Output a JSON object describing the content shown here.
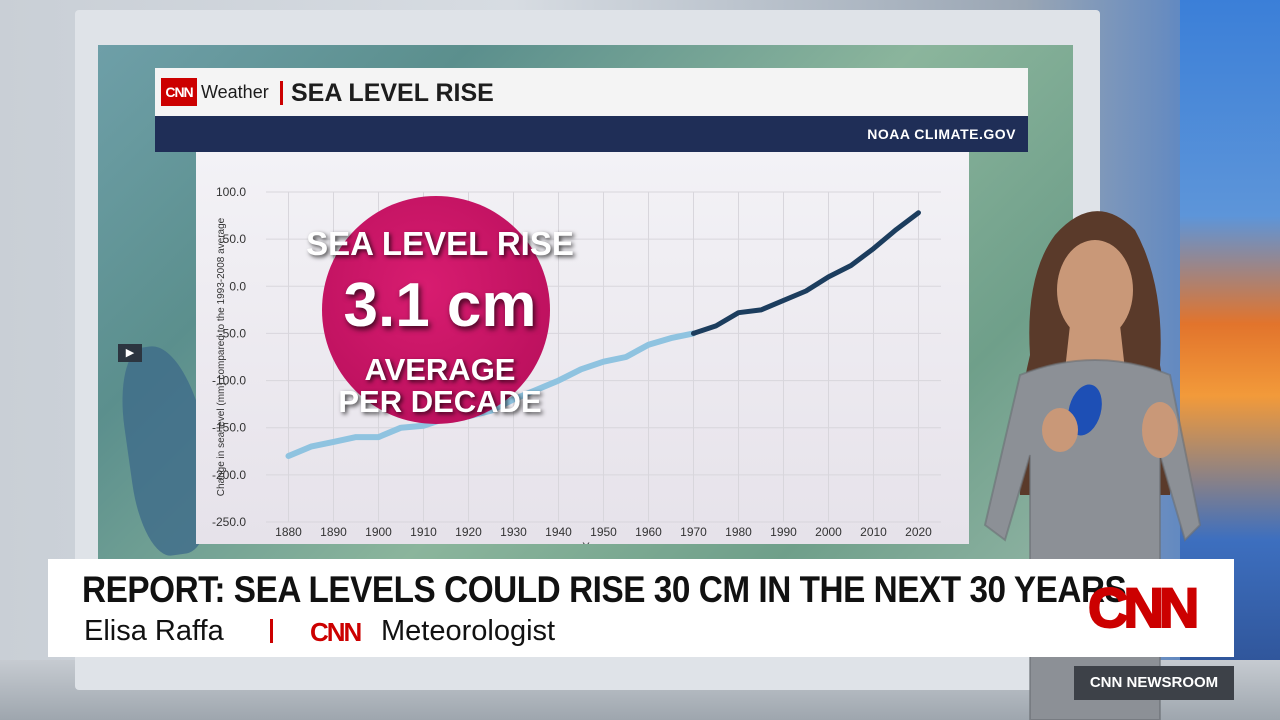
{
  "header": {
    "logo_text": "CNN",
    "section": "Weather",
    "title": "SEA LEVEL RISE",
    "source": "NOAA CLIMATE.GOV"
  },
  "callout": {
    "line1": "SEA LEVEL RISE",
    "value": "3.1 cm",
    "line3a": "AVERAGE",
    "line3b": "PER DECADE",
    "color": "#c8125f"
  },
  "chart_data": {
    "type": "line",
    "ylabel": "Change in sea level (mm) compared to the 1993-2008 average",
    "xlabel": "Year",
    "y_ticks": [
      "100.0",
      "50.0",
      "0.0",
      "-50.0",
      "-100.0",
      "-150.0",
      "-200.0",
      "-250.0"
    ],
    "x_ticks": [
      "1880",
      "1890",
      "1900",
      "1910",
      "1920",
      "1930",
      "1940",
      "1950",
      "1960",
      "1970",
      "1980",
      "1990",
      "2000",
      "2010",
      "2020"
    ],
    "ylim": [
      -250,
      100
    ],
    "xlim": [
      1875,
      2025
    ],
    "grid": true,
    "series": [
      {
        "color": "#8fc3e0",
        "x": [
          1880,
          1885,
          1890,
          1895,
          1900,
          1905,
          1910,
          1915,
          1920,
          1925,
          1930,
          1935,
          1940,
          1945,
          1950,
          1955,
          1960,
          1965,
          1970
        ],
        "y": [
          -180,
          -170,
          -165,
          -160,
          -160,
          -150,
          -148,
          -140,
          -138,
          -132,
          -120,
          -110,
          -100,
          -88,
          -80,
          -75,
          -62,
          -55,
          -50
        ]
      },
      {
        "color": "#1c3d5e",
        "x": [
          1970,
          1975,
          1980,
          1985,
          1990,
          1995,
          2000,
          2005,
          2010,
          2015,
          2020
        ],
        "y": [
          -50,
          -42,
          -28,
          -25,
          -15,
          -5,
          10,
          22,
          40,
          60,
          78
        ]
      }
    ]
  },
  "lower_third": {
    "headline": "REPORT: SEA LEVELS COULD RISE 30 CM IN THE NEXT 30 YEARS",
    "name": "Elisa Raffa",
    "network": "CNN",
    "role": "Meteorologist",
    "logo": "CNN"
  },
  "bug": {
    "show_name": "CNN NEWSROOM"
  }
}
